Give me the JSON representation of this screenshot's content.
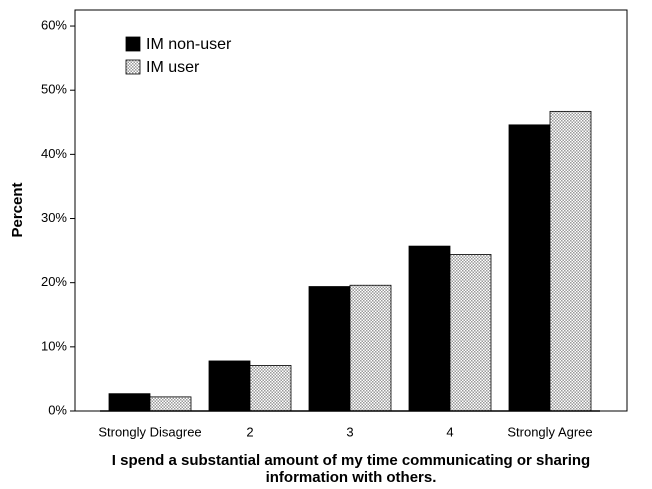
{
  "chart_data": {
    "type": "bar",
    "ylabel": "Percent",
    "xlabel": [
      "I spend a substantial amount of my time communicating or sharing",
      "information with others."
    ],
    "categories": [
      "Strongly Disagree",
      "2",
      "3",
      "4",
      "Strongly Agree"
    ],
    "series": [
      {
        "name": "IM non-user",
        "color": "#000000",
        "values": [
          2.7,
          7.8,
          19.4,
          25.7,
          44.6
        ]
      },
      {
        "name": "IM user",
        "color": "#9a9a9a",
        "values": [
          2.2,
          7.1,
          19.6,
          24.4,
          46.7
        ]
      }
    ],
    "ylim": [
      0,
      62.5
    ],
    "yticks": [
      {
        "value": 0,
        "label": "0%"
      },
      {
        "value": 10,
        "label": "10%"
      },
      {
        "value": 20,
        "label": "20%"
      },
      {
        "value": 30,
        "label": "30%"
      },
      {
        "value": 40,
        "label": "40%"
      },
      {
        "value": 50,
        "label": "50%"
      },
      {
        "value": 60,
        "label": "60%"
      }
    ],
    "legend": "upper left",
    "grid": false
  }
}
